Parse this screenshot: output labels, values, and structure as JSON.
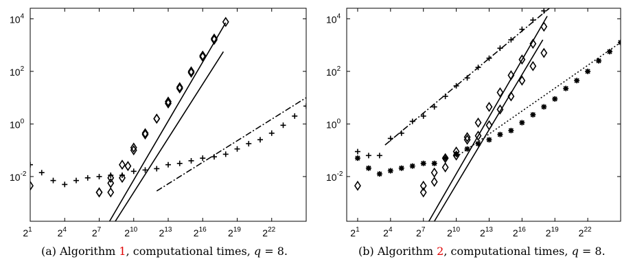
{
  "colors": {
    "mark": "#000000",
    "caption_ref": "#e00000",
    "background": "#ffffff"
  },
  "chart_data": [
    {
      "type": "scatter",
      "scale": {
        "x": "log2",
        "y": "log10"
      },
      "xlim": [
        1,
        25
      ],
      "ylim": [
        -3.7,
        4.4
      ],
      "x_ticks": [
        1,
        4,
        7,
        10,
        13,
        16,
        19,
        22
      ],
      "x_tick_labels": [
        {
          "base": "2",
          "exp": "1"
        },
        {
          "base": "2",
          "exp": "4"
        },
        {
          "base": "2",
          "exp": "7"
        },
        {
          "base": "2",
          "exp": "10"
        },
        {
          "base": "2",
          "exp": "13"
        },
        {
          "base": "2",
          "exp": "16"
        },
        {
          "base": "2",
          "exp": "19"
        },
        {
          "base": "2",
          "exp": "22"
        }
      ],
      "y_ticks": [
        -2,
        0,
        2,
        4
      ],
      "y_tick_labels": [
        {
          "base": "10",
          "exp": "-2"
        },
        {
          "base": "10",
          "exp": "0"
        },
        {
          "base": "10",
          "exp": "2"
        },
        {
          "base": "10",
          "exp": "4"
        }
      ],
      "caption": {
        "prefix": "(a)  Algorithm ",
        "ref": "1",
        "middle": ", computational times, ",
        "var": "q",
        "suffix": " = 8."
      },
      "series": [
        {
          "marker": "diamond",
          "points": [
            [
              1,
              -2.35
            ],
            [
              7,
              -2.6
            ],
            [
              8,
              -2.6
            ],
            [
              8,
              -2.05
            ],
            [
              9,
              -2.05
            ],
            [
              9.5,
              -1.6
            ],
            [
              10,
              -0.9
            ],
            [
              11,
              -0.35
            ],
            [
              12,
              0.2
            ],
            [
              13,
              0.85
            ],
            [
              14,
              1.4
            ],
            [
              15,
              2.0
            ],
            [
              16,
              2.6
            ],
            [
              17,
              3.25
            ],
            [
              18,
              3.88
            ]
          ]
        },
        {
          "marker": "diamond",
          "points": [
            [
              7,
              -2.6
            ],
            [
              8,
              -2.25
            ],
            [
              9,
              -1.55
            ],
            [
              10,
              -1.0
            ],
            [
              11,
              -0.4
            ],
            [
              12,
              0.2
            ],
            [
              13,
              0.78
            ],
            [
              14,
              1.35
            ],
            [
              15,
              1.95
            ],
            [
              16,
              2.55
            ],
            [
              17,
              3.2
            ]
          ]
        },
        {
          "marker": "plus",
          "points": [
            [
              1,
              -1.55
            ],
            [
              2,
              -1.85
            ],
            [
              3,
              -2.15
            ],
            [
              4,
              -2.3
            ],
            [
              5,
              -2.15
            ],
            [
              6,
              -2.05
            ],
            [
              7,
              -2.0
            ],
            [
              8,
              -1.95
            ],
            [
              9,
              -1.95
            ],
            [
              10,
              -1.8
            ],
            [
              11,
              -1.75
            ],
            [
              12,
              -1.7
            ],
            [
              13,
              -1.55
            ],
            [
              14,
              -1.5
            ],
            [
              15,
              -1.4
            ],
            [
              16,
              -1.3
            ],
            [
              17,
              -1.25
            ],
            [
              18,
              -1.15
            ],
            [
              19,
              -0.95
            ],
            [
              20,
              -0.75
            ],
            [
              21,
              -0.6
            ],
            [
              22,
              -0.35
            ],
            [
              23,
              -0.05
            ],
            [
              24,
              0.3
            ],
            [
              25,
              0.68
            ]
          ]
        }
      ],
      "lines": [
        {
          "style": "solid",
          "from": [
            7.9,
            -3.7
          ],
          "to": [
            18.0,
            3.85
          ]
        },
        {
          "style": "solid",
          "from": [
            8.4,
            -3.7
          ],
          "to": [
            17.8,
            2.75
          ]
        },
        {
          "style": "dashdot",
          "from": [
            12.0,
            -2.55
          ],
          "to": [
            25.0,
            1.0
          ]
        }
      ]
    },
    {
      "type": "scatter",
      "scale": {
        "x": "log2",
        "y": "log10"
      },
      "xlim": [
        0,
        25
      ],
      "ylim": [
        -3.7,
        4.4
      ],
      "x_ticks": [
        1,
        4,
        7,
        10,
        13,
        16,
        19,
        22
      ],
      "x_tick_labels": [
        {
          "base": "2",
          "exp": "1"
        },
        {
          "base": "2",
          "exp": "4"
        },
        {
          "base": "2",
          "exp": "7"
        },
        {
          "base": "2",
          "exp": "10"
        },
        {
          "base": "2",
          "exp": "13"
        },
        {
          "base": "2",
          "exp": "16"
        },
        {
          "base": "2",
          "exp": "19"
        },
        {
          "base": "2",
          "exp": "22"
        }
      ],
      "y_ticks": [
        -2,
        0,
        2,
        4
      ],
      "y_tick_labels": [
        {
          "base": "10",
          "exp": "-2"
        },
        {
          "base": "10",
          "exp": "0"
        },
        {
          "base": "10",
          "exp": "2"
        },
        {
          "base": "10",
          "exp": "4"
        }
      ],
      "caption": {
        "prefix": "(b)  Algorithm ",
        "ref": "2",
        "middle": ", computational times, ",
        "var": "q",
        "suffix": " = 8."
      },
      "series": [
        {
          "marker": "plus",
          "points": [
            [
              1,
              -1.05
            ],
            [
              2,
              -1.2
            ],
            [
              3,
              -1.2
            ],
            [
              4,
              -0.55
            ],
            [
              5,
              -0.35
            ],
            [
              6,
              0.1
            ],
            [
              7,
              0.3
            ],
            [
              8,
              0.65
            ],
            [
              9,
              1.05
            ],
            [
              10,
              1.45
            ],
            [
              11,
              1.75
            ],
            [
              12,
              2.15
            ],
            [
              13,
              2.5
            ],
            [
              14,
              2.88
            ],
            [
              15,
              3.2
            ],
            [
              16,
              3.6
            ],
            [
              17,
              3.95
            ],
            [
              18,
              4.3
            ]
          ]
        },
        {
          "marker": "star",
          "points": [
            [
              1,
              -1.3
            ],
            [
              2,
              -1.68
            ],
            [
              3,
              -1.9
            ],
            [
              4,
              -1.78
            ],
            [
              5,
              -1.68
            ],
            [
              6,
              -1.6
            ],
            [
              7,
              -1.5
            ],
            [
              8,
              -1.5
            ],
            [
              9,
              -1.3
            ],
            [
              10,
              -1.15
            ],
            [
              11,
              -0.95
            ],
            [
              12,
              -0.75
            ],
            [
              13,
              -0.6
            ],
            [
              14,
              -0.4
            ],
            [
              15,
              -0.25
            ],
            [
              16,
              0.05
            ],
            [
              17,
              0.35
            ],
            [
              18,
              0.65
            ],
            [
              19,
              0.95
            ],
            [
              20,
              1.35
            ],
            [
              21,
              1.65
            ],
            [
              22,
              2.0
            ],
            [
              23,
              2.4
            ],
            [
              24,
              2.75
            ],
            [
              25,
              3.1
            ]
          ]
        },
        {
          "marker": "diamond",
          "points": [
            [
              1,
              -2.35
            ],
            [
              7,
              -2.35
            ],
            [
              7,
              -2.6
            ],
            [
              8,
              -1.85
            ],
            [
              8,
              -2.2
            ],
            [
              9,
              -1.3
            ],
            [
              9,
              -1.65
            ],
            [
              10,
              -1.05
            ],
            [
              10,
              -1.2
            ],
            [
              11,
              -0.5
            ],
            [
              11,
              -0.6
            ],
            [
              12,
              0.05
            ],
            [
              12,
              -0.45
            ],
            [
              13,
              0.65
            ],
            [
              13,
              -0.05
            ],
            [
              14,
              1.2
            ],
            [
              14,
              0.55
            ],
            [
              15,
              1.85
            ],
            [
              15,
              1.05
            ],
            [
              16,
              2.45
            ],
            [
              16,
              1.65
            ],
            [
              17,
              3.05
            ],
            [
              17,
              2.2
            ],
            [
              18,
              3.7
            ],
            [
              18,
              2.7
            ]
          ]
        }
      ],
      "lines": [
        {
          "style": "solid",
          "from": [
            7.5,
            -3.7
          ],
          "to": [
            18.3,
            4.1
          ]
        },
        {
          "style": "solid",
          "from": [
            8.0,
            -3.7
          ],
          "to": [
            17.9,
            3.2
          ]
        },
        {
          "style": "dashdot",
          "from": [
            3.5,
            -0.8
          ],
          "to": [
            18.5,
            4.4
          ]
        },
        {
          "style": "dotted",
          "from": [
            10.0,
            -1.25
          ],
          "to": [
            25.0,
            3.1
          ]
        }
      ]
    }
  ]
}
